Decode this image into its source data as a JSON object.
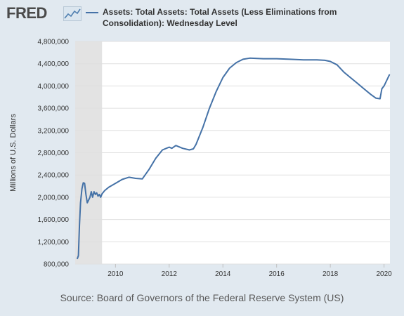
{
  "brand": {
    "name": "FRED",
    "icon": "trend-chart-icon"
  },
  "chart_data": {
    "type": "line",
    "title": "Assets: Total Assets: Total Assets (Less Eliminations from Consolidation): Wednesday Level",
    "ylabel": "Millions of U.S. Dollars",
    "xlabel": "",
    "xlim": [
      2008.5,
      2020.22
    ],
    "ylim": [
      800000,
      4800000
    ],
    "y_ticks": [
      800000,
      1200000,
      1600000,
      2000000,
      2400000,
      2800000,
      3200000,
      3600000,
      4000000,
      4400000,
      4800000
    ],
    "y_tick_labels": [
      "800,000",
      "1,200,000",
      "1,600,000",
      "2,000,000",
      "2,400,000",
      "2,800,000",
      "3,200,000",
      "3,600,000",
      "4,000,000",
      "4,400,000",
      "4,800,000"
    ],
    "x_ticks": [
      2010,
      2012,
      2014,
      2016,
      2018,
      2020
    ],
    "x_tick_labels": [
      "2010",
      "2012",
      "2014",
      "2016",
      "2018",
      "2020"
    ],
    "recession": {
      "start": 2008.5,
      "end": 2009.5
    },
    "grid": true,
    "line_color": "#4572a7",
    "recession_color": "#e3e3e3",
    "series": [
      {
        "name": "Assets: Total Assets: Total Assets (Less Eliminations from Consolidation): Wednesday Level",
        "x": [
          2008.58,
          2008.62,
          2008.66,
          2008.7,
          2008.75,
          2008.8,
          2008.85,
          2008.9,
          2008.95,
          2009.0,
          2009.05,
          2009.1,
          2009.15,
          2009.2,
          2009.25,
          2009.3,
          2009.35,
          2009.4,
          2009.45,
          2009.5,
          2009.6,
          2009.75,
          2010.0,
          2010.25,
          2010.5,
          2010.75,
          2011.0,
          2011.25,
          2011.5,
          2011.75,
          2012.0,
          2012.1,
          2012.25,
          2012.5,
          2012.75,
          2012.9,
          2013.0,
          2013.25,
          2013.5,
          2013.75,
          2014.0,
          2014.25,
          2014.5,
          2014.75,
          2015.0,
          2015.5,
          2016.0,
          2016.5,
          2017.0,
          2017.5,
          2017.8,
          2018.0,
          2018.25,
          2018.5,
          2018.75,
          2019.0,
          2019.25,
          2019.5,
          2019.7,
          2019.85,
          2019.92,
          2020.0,
          2020.1,
          2020.2
        ],
        "values": [
          900000,
          950000,
          1500000,
          1900000,
          2150000,
          2260000,
          2250000,
          2050000,
          1900000,
          1950000,
          2000000,
          2100000,
          2000000,
          2100000,
          2050000,
          2080000,
          2020000,
          2050000,
          2000000,
          2060000,
          2120000,
          2180000,
          2250000,
          2320000,
          2360000,
          2340000,
          2330000,
          2500000,
          2700000,
          2850000,
          2900000,
          2880000,
          2930000,
          2880000,
          2850000,
          2870000,
          2950000,
          3250000,
          3600000,
          3900000,
          4150000,
          4320000,
          4420000,
          4480000,
          4500000,
          4490000,
          4490000,
          4480000,
          4470000,
          4470000,
          4460000,
          4440000,
          4380000,
          4250000,
          4150000,
          4050000,
          3950000,
          3850000,
          3780000,
          3770000,
          3950000,
          4000000,
          4100000,
          4200000
        ]
      }
    ]
  },
  "footer": {
    "source": "Source: Board of Governors of the Federal Reserve System (US)"
  }
}
